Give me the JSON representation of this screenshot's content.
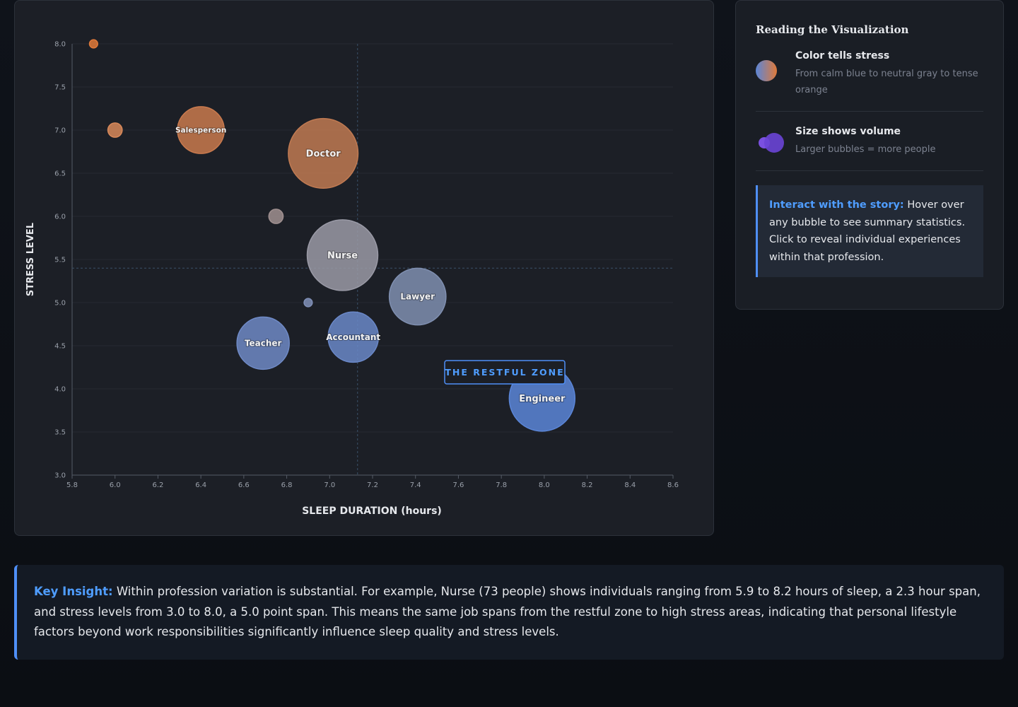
{
  "chart_data": {
    "type": "bubble",
    "x_label": "SLEEP DURATION (hours)",
    "y_label": "STRESS LEVEL",
    "labels": [
      null,
      null,
      "Salesperson",
      "Doctor",
      null,
      "Nurse",
      "Lawyer",
      null,
      "Teacher",
      "Accountant",
      "Engineer"
    ],
    "x": [
      5.9,
      6.0,
      6.4,
      6.97,
      6.75,
      7.06,
      7.41,
      6.9,
      6.69,
      7.11,
      7.99
    ],
    "y": [
      8.0,
      7.0,
      7.0,
      6.73,
      6.0,
      5.55,
      5.07,
      5.0,
      4.53,
      4.6,
      3.89
    ],
    "sizes": [
      1,
      3,
      32,
      71,
      3,
      73,
      47,
      1,
      40,
      37,
      63
    ],
    "colors": [
      "#e07a3a",
      "#d8895a",
      "#c97a4e",
      "#c07a52",
      "#a09090",
      "#9a9aa6",
      "#7f8fb0",
      "#8090b8",
      "#6f8ac6",
      "#6a88c8",
      "#5b86d8"
    ],
    "xlim": [
      5.8,
      8.6
    ],
    "xticks": [
      5.8,
      {
        "value": 6.0,
        "label": "6.0"
      },
      6.2,
      6.4,
      6.6,
      6.8,
      {
        "value": 7.0,
        "label": "7.0"
      },
      7.2,
      7.4,
      7.6,
      7.8,
      {
        "value": 8.0,
        "label": "8.0"
      },
      8.2,
      8.4,
      8.6
    ],
    "ylim": [
      3.0,
      8.0
    ],
    "yticks": [
      {
        "value": 3.0,
        "label": "3.0"
      },
      3.5,
      {
        "value": 4.0,
        "label": "4.0"
      },
      4.5,
      {
        "value": 5.0,
        "label": "5.0"
      },
      5.5,
      {
        "value": 6.0,
        "label": "6.0"
      },
      6.5,
      {
        "value": 7.0,
        "label": "7.0"
      },
      7.5,
      {
        "value": 8.0,
        "label": "8.0"
      }
    ],
    "x_reference": 7.13,
    "y_reference": 5.4,
    "annotation": "THE RESTFUL ZONE"
  },
  "legend_panel": {
    "title": "Reading the Visualization",
    "items": [
      {
        "title": "Color tells stress",
        "text": "From calm blue to neutral gray to tense orange"
      },
      {
        "title": "Size shows volume",
        "text": "Larger bubbles = more people"
      }
    ],
    "callout": {
      "lead": "Interact with the story:",
      "text": "Hover over any bubble to see summary statistics. Click to reveal individual experiences within that profession."
    }
  },
  "insight": {
    "lead": "Key Insight:",
    "text": "Within profession variation is substantial. For example, Nurse (73 people) shows individuals ranging from 5.9 to 8.2 hours of sleep, a 2.3 hour span, and stress levels from 3.0 to 8.0, a 5.0 point span. This means the same job spans from the restful zone to high stress areas, indicating that personal lifestyle factors beyond work responsibilities significantly influence sleep quality and stress levels."
  }
}
